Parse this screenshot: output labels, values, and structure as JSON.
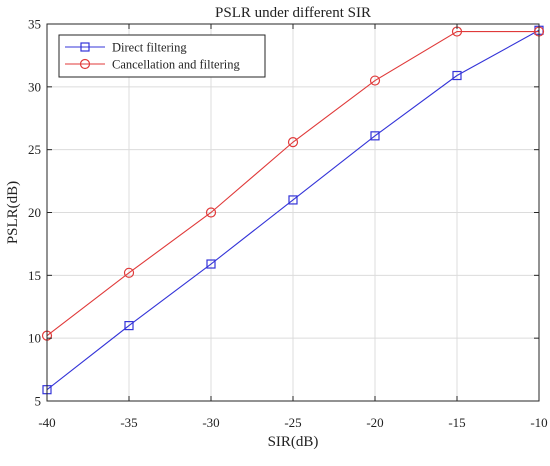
{
  "chart_data": {
    "type": "line",
    "title": "PSLR under different SIR",
    "xlabel": "SIR(dB)",
    "ylabel": "PSLR(dB)",
    "x": [
      -40,
      -35,
      -30,
      -25,
      -20,
      -15,
      -10
    ],
    "xlim": [
      -40,
      -10
    ],
    "ylim": [
      5,
      35
    ],
    "xticks": [
      -40,
      -35,
      -30,
      -25,
      -20,
      -15,
      -10
    ],
    "yticks": [
      5,
      10,
      15,
      20,
      25,
      30,
      35
    ],
    "xtick_labels": [
      "-40",
      "-35",
      "-30",
      "-25",
      "-20",
      "-15",
      "-10"
    ],
    "ytick_labels": [
      "5",
      "10",
      "15",
      "20",
      "25",
      "30",
      "35"
    ],
    "grid": true,
    "legend_position": "top-left",
    "series": [
      {
        "name": "Direct filtering",
        "color": "#3434d8",
        "marker": "square",
        "values": [
          5.9,
          11.0,
          15.9,
          21.0,
          26.1,
          30.9,
          34.5
        ]
      },
      {
        "name": "Cancellation and filtering",
        "color": "#e03a3a",
        "marker": "circle",
        "values": [
          10.2,
          15.2,
          20.0,
          25.6,
          30.5,
          34.4,
          34.4
        ]
      }
    ]
  }
}
